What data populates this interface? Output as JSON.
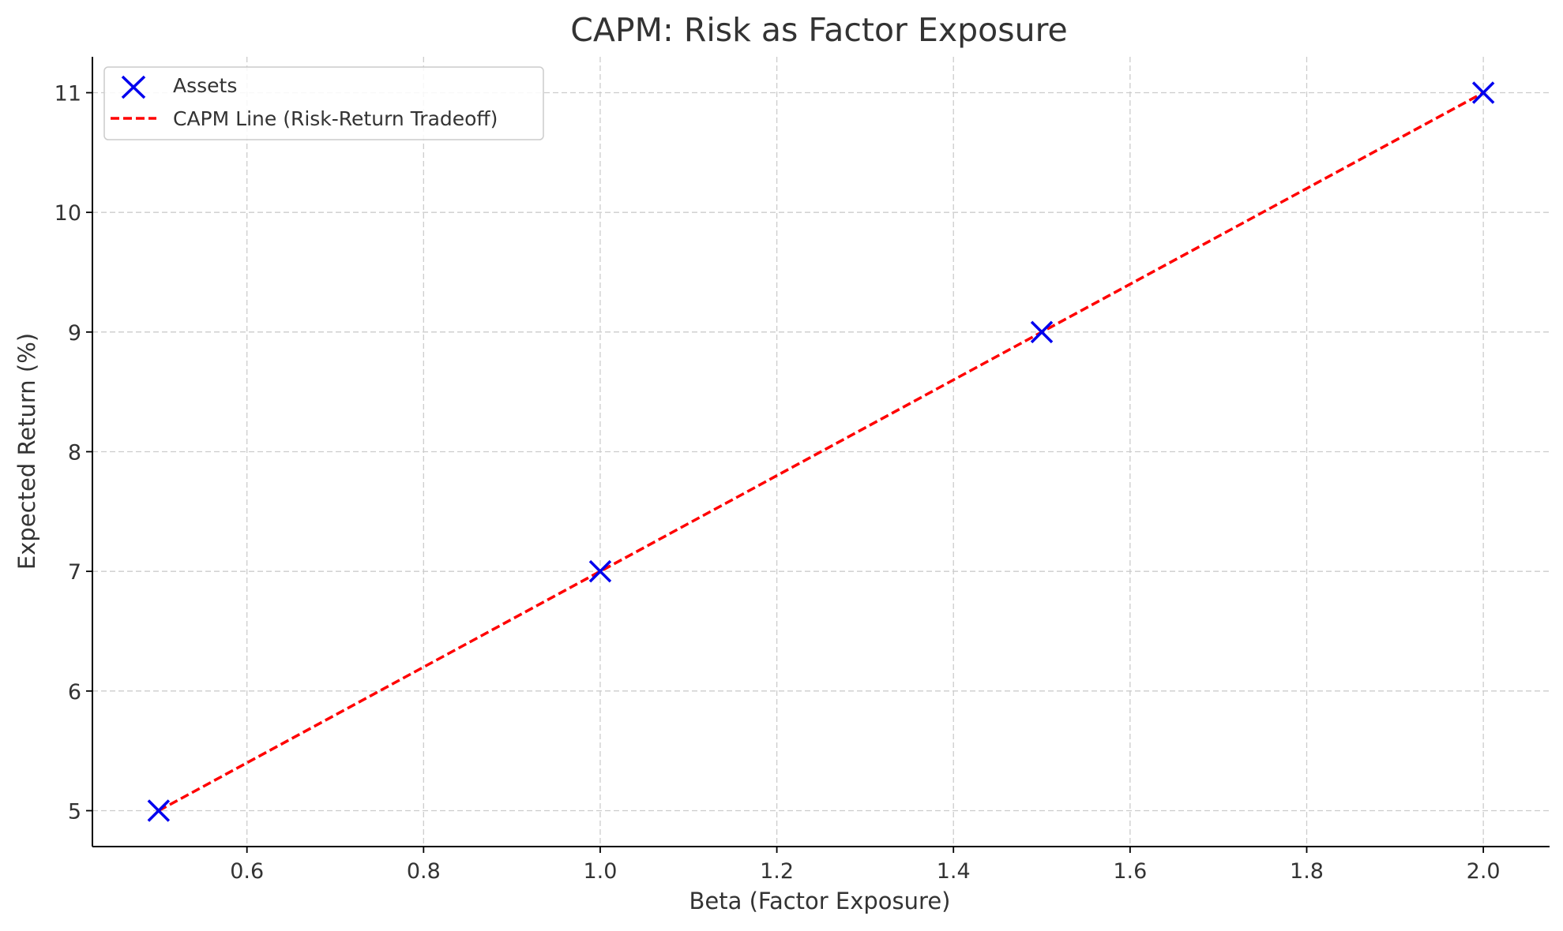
{
  "chart_data": {
    "type": "scatter",
    "title": "CAPM: Risk as Factor Exposure",
    "xlabel": "Beta (Factor Exposure)",
    "ylabel": "Expected Return (%)",
    "xlim": [
      0.425,
      2.075
    ],
    "ylim": [
      4.7,
      11.3
    ],
    "grid": true,
    "legend_position": "top-left",
    "x_ticks": [
      0.6,
      0.8,
      1.0,
      1.2,
      1.4,
      1.6,
      1.8,
      2.0
    ],
    "x_tick_labels": [
      "0.6",
      "0.8",
      "1.0",
      "1.2",
      "1.4",
      "1.6",
      "1.8",
      "2.0"
    ],
    "y_ticks": [
      5,
      6,
      7,
      8,
      9,
      10,
      11
    ],
    "y_tick_labels": [
      "5",
      "6",
      "7",
      "8",
      "9",
      "10",
      "11"
    ],
    "series": [
      {
        "name": "Assets",
        "kind": "scatter",
        "marker": "x",
        "color": "#0000ee",
        "x": [
          0.5,
          1.0,
          1.5,
          2.0
        ],
        "y": [
          5,
          7,
          9,
          11
        ]
      },
      {
        "name": "CAPM Line (Risk-Return Tradeoff)",
        "kind": "line",
        "style": "dashed",
        "color": "#ff0000",
        "x": [
          0.5,
          2.0
        ],
        "y": [
          5,
          11
        ]
      }
    ]
  }
}
